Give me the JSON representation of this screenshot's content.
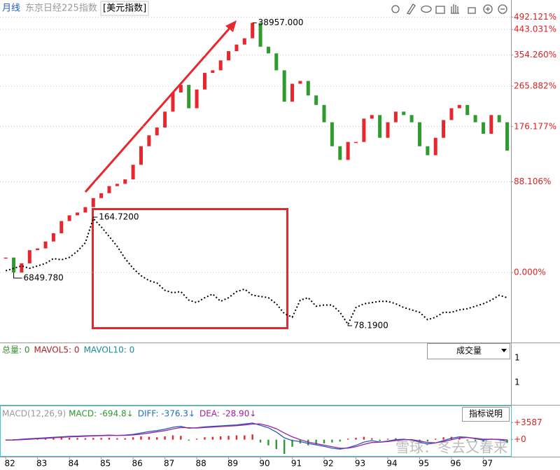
{
  "watermark": "雪球：冬去又春来",
  "chart_data": [
    {
      "type": "candlestick",
      "period": "月线",
      "x": [
        82,
        82.25,
        82.5,
        82.75,
        83,
        83.25,
        83.5,
        83.75,
        84,
        84.25,
        84.5,
        84.75,
        85,
        85.25,
        85.5,
        85.75,
        86,
        86.25,
        86.5,
        86.75,
        87,
        87.25,
        87.5,
        87.75,
        88,
        88.25,
        88.5,
        88.75,
        89,
        89.25,
        89.5,
        89.75,
        90,
        90.25,
        90.5,
        90.75,
        91,
        91.25,
        91.5,
        91.75,
        92,
        92.25,
        92.5,
        92.75,
        93,
        93.25,
        93.5,
        93.75,
        94,
        94.25,
        94.5,
        94.75,
        95,
        95.25,
        95.5,
        95.75,
        96,
        96.25,
        96.5,
        96.75,
        97,
        97.25,
        97.5,
        97.75
      ],
      "xlim": [
        81.82,
        97.87
      ],
      "xticks": [
        82,
        83,
        84,
        85,
        86,
        87,
        88,
        89,
        90,
        91,
        92,
        93,
        94,
        95,
        96,
        97
      ],
      "ylim": [
        4226,
        45690
      ],
      "yscale": "log",
      "yticks": [
        {
          "value": 40559.2,
          "label": "492.121%"
        },
        {
          "value": 37196.6,
          "label": "443.031%"
        },
        {
          "value": 31115.9,
          "label": "354.260%"
        },
        {
          "value": 25062.4,
          "label": "265.882%"
        },
        {
          "value": 18917.7,
          "label": "176.177%"
        },
        {
          "value": 12884.9,
          "label": "88.106%"
        },
        {
          "value": 6849.78,
          "label": "0.000%"
        }
      ],
      "y2lim": [
        63.9,
        343.5
      ],
      "grid": true,
      "series": [
        {
          "name": "东京日经225指数",
          "up_color": "#e8262d",
          "down_color": "#2e9b2e",
          "values": [
            7600,
            6849.78,
            7300,
            8000,
            8100,
            8500,
            9000,
            9800,
            10200,
            10400,
            10800,
            11500,
            11900,
            12500,
            12700,
            13100,
            14500,
            16500,
            17800,
            18800,
            21000,
            24000,
            25300,
            21500,
            24500,
            27500,
            28000,
            30000,
            32000,
            33500,
            35000,
            38957,
            33000,
            31500,
            28000,
            22500,
            25500,
            26000,
            23500,
            22000,
            19500,
            16500,
            15000,
            17000,
            17000,
            20000,
            20500,
            17500,
            19500,
            21000,
            20500,
            19500,
            16500,
            15500,
            17500,
            19800,
            21500,
            22000,
            20500,
            19500,
            18000,
            20500,
            19500,
            16000
          ]
        },
        {
          "name": "[美元指数]",
          "axis": "y2",
          "color": "#000000",
          "values": [
            122,
            124,
            126,
            124,
            126,
            128,
            132,
            131,
            133,
            138,
            145,
            164.72,
            158,
            150,
            142,
            132,
            124,
            118,
            114,
            112,
            106,
            104,
            105,
            98,
            96,
            100,
            103,
            97,
            100,
            105,
            107,
            102,
            101,
            100,
            95,
            87,
            84,
            98,
            100,
            93,
            94,
            94,
            88,
            78.19,
            92,
            95,
            96,
            97,
            97,
            95,
            92,
            90,
            88,
            82,
            84,
            88,
            88,
            90,
            91,
            93,
            95,
            98,
            102,
            100
          ]
        }
      ],
      "annotations": [
        {
          "x": 89.75,
          "value": 38957,
          "label": "38957.000"
        },
        {
          "x": 82.25,
          "value": 6849.78,
          "label": "6849.780"
        },
        {
          "x": 84.75,
          "value": 164.72,
          "label": "164.7200",
          "axis": "y2"
        },
        {
          "x": 92.75,
          "value": 78.19,
          "label": "78.1900",
          "axis": "y2"
        }
      ]
    },
    {
      "type": "volume",
      "selector": "成交量",
      "legend": [
        {
          "text": "总量: 0",
          "color": "#2e8b2e"
        },
        {
          "text": "MAVOL5: 0",
          "color": "#b02020"
        },
        {
          "text": "MAVOL10: 0",
          "color": "#1a8a9a"
        }
      ],
      "y_labels": [
        "1",
        "1"
      ]
    },
    {
      "type": "macd",
      "title": "MACD(12,26,9)",
      "button": "指标说明",
      "legend": [
        {
          "text": "MACD: -694.8↓",
          "color": "#2e9b2e"
        },
        {
          "text": "DIFF: -376.3↓",
          "color": "#1f6fbf"
        },
        {
          "text": "DEA: -28.90↓",
          "color": "#a020a0"
        }
      ],
      "ylim": [
        -3444,
        6887
      ],
      "yticks": [
        {
          "value": 3587,
          "label": "+3587"
        },
        {
          "value": 0,
          "label": "+0"
        }
      ],
      "series": [
        {
          "kind": "bar",
          "up_color": "#e8262d",
          "down_color": "#2e9b2e",
          "values": [
            50,
            100,
            150,
            250,
            300,
            300,
            350,
            400,
            400,
            350,
            300,
            350,
            350,
            400,
            300,
            300,
            500,
            700,
            600,
            500,
            700,
            900,
            800,
            -200,
            200,
            500,
            600,
            700,
            800,
            900,
            900,
            1100,
            -600,
            -1200,
            -2000,
            -3000,
            -1500,
            -800,
            -1200,
            -1000,
            -800,
            -600,
            -400,
            200,
            400,
            600,
            300,
            -300,
            200,
            300,
            100,
            -200,
            -500,
            -400,
            200,
            500,
            600,
            400,
            -200,
            -300,
            -400,
            200,
            -100,
            -694.8
          ]
        },
        {
          "kind": "line",
          "color": "#1f5fbf",
          "values": [
            -100,
            -50,
            100,
            200,
            300,
            400,
            500,
            600,
            700,
            750,
            800,
            850,
            900,
            950,
            900,
            950,
            1100,
            1400,
            1700,
            1900,
            2200,
            2600,
            2800,
            2400,
            2500,
            2700,
            2800,
            2900,
            3000,
            3100,
            3300,
            3500,
            3000,
            2500,
            1600,
            400,
            -200,
            -400,
            -800,
            -1100,
            -1400,
            -1800,
            -2000,
            -1700,
            -1200,
            -500,
            -200,
            -500,
            -300,
            0,
            100,
            -100,
            -500,
            -900,
            -700,
            -200,
            300,
            600,
            500,
            200,
            -100,
            100,
            0,
            -376.3
          ]
        },
        {
          "kind": "line",
          "color": "#a020a0",
          "values": [
            -100,
            -80,
            0,
            80,
            180,
            280,
            380,
            480,
            580,
            650,
            720,
            780,
            830,
            880,
            890,
            900,
            980,
            1150,
            1400,
            1650,
            1900,
            2250,
            2550,
            2500,
            2450,
            2550,
            2650,
            2750,
            2850,
            2950,
            3100,
            3300,
            3300,
            2900,
            2300,
            1400,
            600,
            0,
            -500,
            -850,
            -1150,
            -1500,
            -1800,
            -1800,
            -1500,
            -1000,
            -600,
            -550,
            -400,
            -200,
            0,
            0,
            -250,
            -600,
            -650,
            -400,
            0,
            350,
            450,
            300,
            100,
            100,
            50,
            -28.9
          ]
        }
      ]
    }
  ]
}
